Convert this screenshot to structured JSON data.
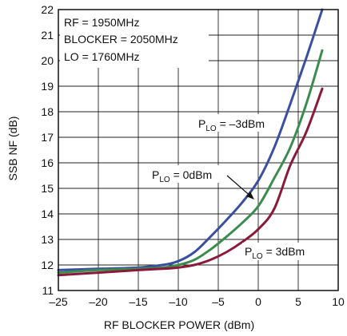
{
  "chart_data": {
    "type": "line",
    "title": "",
    "xlabel": "RF BLOCKER POWER (dBm)",
    "ylabel": "SSB NF (dB)",
    "xlim": [
      -25,
      10
    ],
    "ylim": [
      11,
      22
    ],
    "xticks": [
      -25,
      -20,
      -15,
      -10,
      -5,
      0,
      5,
      10
    ],
    "xtick_labels": [
      "–25",
      "–20",
      "–15",
      "–10",
      "–5",
      "0",
      "5",
      "10"
    ],
    "yticks": [
      11,
      12,
      13,
      14,
      15,
      16,
      17,
      18,
      19,
      20,
      21,
      22
    ],
    "ytick_labels": [
      "11",
      "12",
      "13",
      "14",
      "15",
      "16",
      "17",
      "18",
      "19",
      "20",
      "21",
      "22"
    ],
    "grid": true,
    "conditions": {
      "line1": "RF = 1950MHz",
      "line2": "BLOCKER = 2050MHz",
      "line3": "LO = 1760MHz"
    },
    "series": [
      {
        "label_main": "P",
        "label_sub": "LO",
        "label_value": " = –3dBm",
        "color": "#3a4fa0",
        "x": [
          -25,
          -20,
          -15,
          -12,
          -10,
          -8,
          -6,
          -4,
          -2,
          0,
          2,
          4,
          6,
          8
        ],
        "y": [
          11.8,
          11.85,
          11.9,
          12.0,
          12.15,
          12.5,
          13.1,
          13.75,
          14.45,
          15.3,
          16.6,
          18.3,
          20.1,
          22.0
        ]
      },
      {
        "label_main": "P",
        "label_sub": "LO",
        "label_value": " = 0dBm",
        "color": "#3d8c4f",
        "x": [
          -25,
          -20,
          -15,
          -12,
          -10,
          -8,
          -6,
          -4,
          -2,
          0,
          2,
          4,
          6,
          8
        ],
        "y": [
          11.7,
          11.8,
          11.85,
          11.9,
          12.0,
          12.2,
          12.6,
          13.1,
          13.65,
          14.3,
          15.4,
          16.6,
          18.3,
          20.4
        ]
      },
      {
        "label_main": "P",
        "label_sub": "LO",
        "label_value": " = 3dBm",
        "color": "#8b1a3a",
        "x": [
          -25,
          -20,
          -15,
          -12,
          -10,
          -8,
          -6,
          -4,
          -2,
          0,
          2,
          4,
          6,
          8
        ],
        "y": [
          11.6,
          11.7,
          11.8,
          11.85,
          11.9,
          12.0,
          12.2,
          12.5,
          12.9,
          13.4,
          14.2,
          15.9,
          17.2,
          18.9
        ]
      }
    ]
  }
}
